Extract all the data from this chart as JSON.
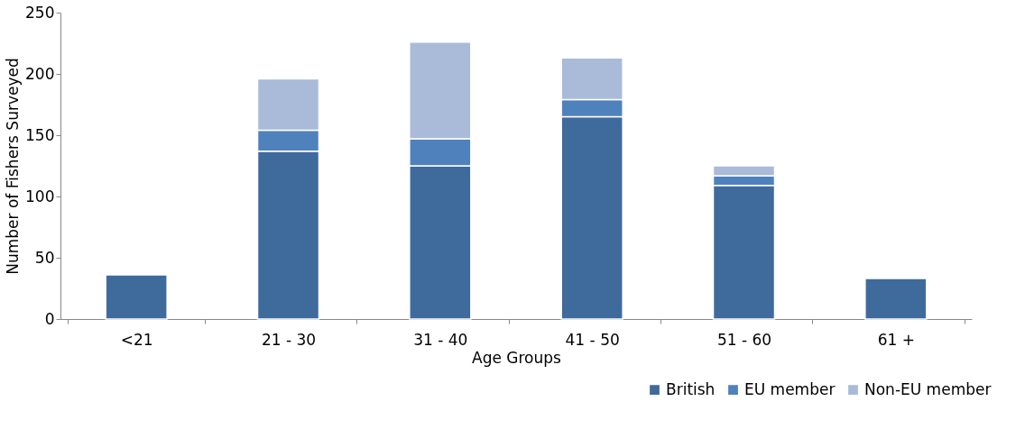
{
  "chart_data": {
    "type": "bar",
    "stacked": true,
    "xlabel": "Age Groups",
    "ylabel": "Number of Fishers Surveyed",
    "categories": [
      "<21",
      "21 - 30",
      "31 - 40",
      "41 - 50",
      "51 - 60",
      "61 +"
    ],
    "series": [
      {
        "name": "British",
        "color": "#3f6a9c",
        "values": [
          36,
          137,
          125,
          165,
          109,
          33
        ]
      },
      {
        "name": "EU member",
        "color": "#4f81bd",
        "values": [
          null,
          17,
          22,
          14,
          8,
          null
        ]
      },
      {
        "name": "Non-EU member",
        "color": "#a9bbd9",
        "values": [
          null,
          42,
          79,
          34,
          8,
          null
        ]
      }
    ],
    "ylim": [
      0,
      250
    ],
    "yticks": [
      0,
      50,
      100,
      150,
      200,
      250
    ],
    "grid": false,
    "legend": "bottom right"
  }
}
